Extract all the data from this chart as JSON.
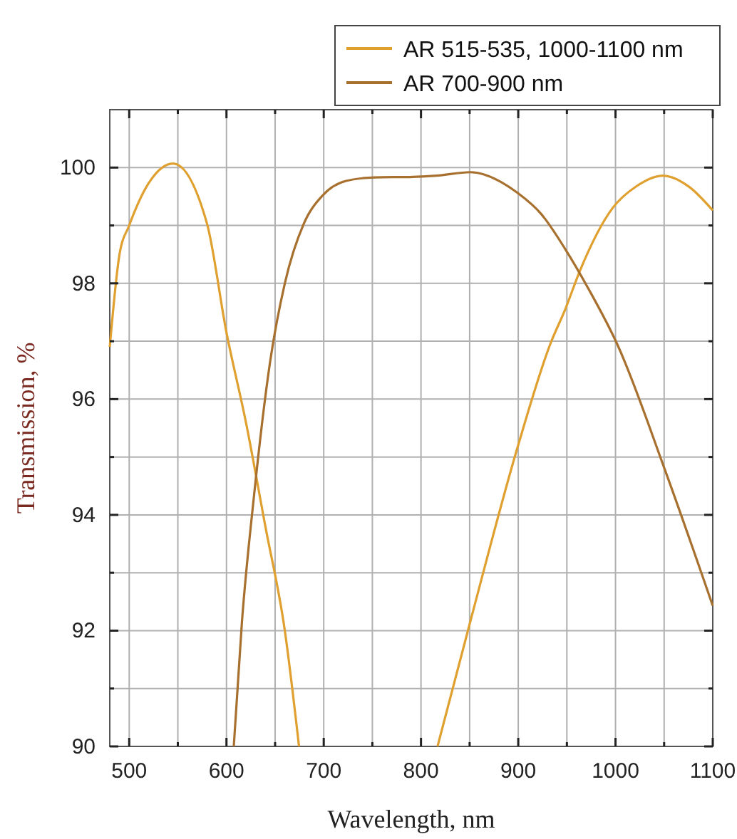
{
  "chart_data": {
    "type": "line",
    "xlabel": "Wavelength, nm",
    "ylabel": "Transmission, %",
    "xlim": [
      480,
      1100
    ],
    "ylim": [
      90,
      101
    ],
    "xticks": [
      500,
      {
        "value": 550,
        "label": null
      },
      600,
      {
        "value": 650,
        "label": null
      },
      700,
      {
        "value": 750,
        "label": null
      },
      800,
      {
        "value": 850,
        "label": null
      },
      900,
      {
        "value": 950,
        "label": null
      },
      1000,
      {
        "value": 1050,
        "label": null
      },
      1100
    ],
    "yticks": [
      90,
      {
        "value": 91,
        "label": null
      },
      92,
      {
        "value": 93,
        "label": null
      },
      94,
      {
        "value": 95,
        "label": null
      },
      96,
      {
        "value": 97,
        "label": null
      },
      98,
      {
        "value": 99,
        "label": null
      },
      100
    ],
    "grid": true,
    "legend": "top right",
    "line_style": "solid",
    "series": [
      {
        "name": "AR 515-535, 1000-1100 nm",
        "color": "#e0a030",
        "x": [
          480,
          490,
          500,
          520,
          545,
          580,
          600,
          620,
          640,
          660,
          674.6,
          750,
          817,
          850.6,
          899.5,
          933.6,
          948.3,
          963,
          997,
          1021.8,
          1048.6,
          1075.5,
          1100
        ],
        "values": [
          96.9,
          98.5,
          99.0,
          99.73,
          100.07,
          99.03,
          97.15,
          95.6,
          93.8,
          92.0,
          90,
          null,
          90,
          92.15,
          95.18,
          96.98,
          97.55,
          98.2,
          99.3,
          99.68,
          99.86,
          99.67,
          99.26
        ]
      },
      {
        "name": "AR 700-900 nm",
        "color": "#a8702e",
        "x": [
          607.5,
          615.9,
          628,
          645,
          660,
          679.5,
          699,
          723,
          752,
          792,
          816,
          850.6,
          899.5,
          924,
          948,
          972.4,
          1002,
          1051,
          1100
        ],
        "values": [
          90,
          92.15,
          94.28,
          96.66,
          98.0,
          99.03,
          99.52,
          99.77,
          99.83,
          99.84,
          99.86,
          99.92,
          99.56,
          99.19,
          98.6,
          97.9,
          96.94,
          94.77,
          92.43
        ]
      }
    ]
  }
}
